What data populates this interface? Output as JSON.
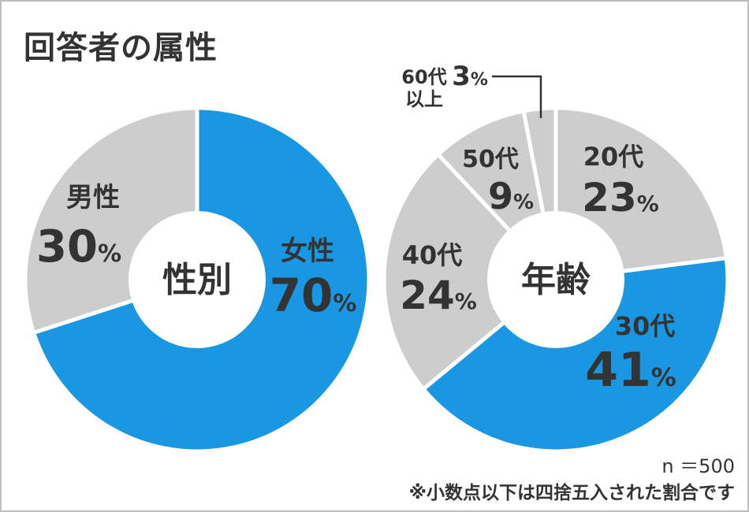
{
  "title": "回答者の属性",
  "note_n": "n ＝500",
  "footnote": "※小数点以下は四捨五入された割合です",
  "colors": {
    "female": "#1a97e3",
    "other": "#cdcdcd",
    "text": "#333333",
    "separator": "#ffffff"
  },
  "chart_data": [
    {
      "type": "pie",
      "center_label": "性別",
      "slices": [
        {
          "label": "女性",
          "value": 70,
          "value_label": "70",
          "unit": "%",
          "highlight": true
        },
        {
          "label": "男性",
          "value": 30,
          "value_label": "30",
          "unit": "%",
          "highlight": false
        }
      ]
    },
    {
      "type": "pie",
      "center_label": "年齢",
      "slices": [
        {
          "label": "20代",
          "value": 23,
          "value_label": "23",
          "unit": "%",
          "highlight": false
        },
        {
          "label": "30代",
          "value": 41,
          "value_label": "41",
          "unit": "%",
          "highlight": true
        },
        {
          "label": "40代",
          "value": 24,
          "value_label": "24",
          "unit": "%",
          "highlight": false
        },
        {
          "label": "50代",
          "value": 9,
          "value_label": "9",
          "unit": "%",
          "highlight": false
        },
        {
          "label": "60代以上",
          "label_line1": "60代",
          "label_line2": "以上",
          "value": 3,
          "value_label": "3",
          "unit": "%",
          "highlight": false
        }
      ]
    }
  ]
}
